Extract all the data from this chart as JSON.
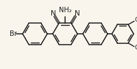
{
  "bg_color": "#faf5ec",
  "bond_color": "#1a1a1a",
  "text_color": "#1a1a1a",
  "bond_lw": 1.1,
  "figsize": [
    2.0,
    1.02
  ],
  "dpi": 100,
  "xlim": [
    0,
    200
  ],
  "ylim": [
    0,
    102
  ]
}
